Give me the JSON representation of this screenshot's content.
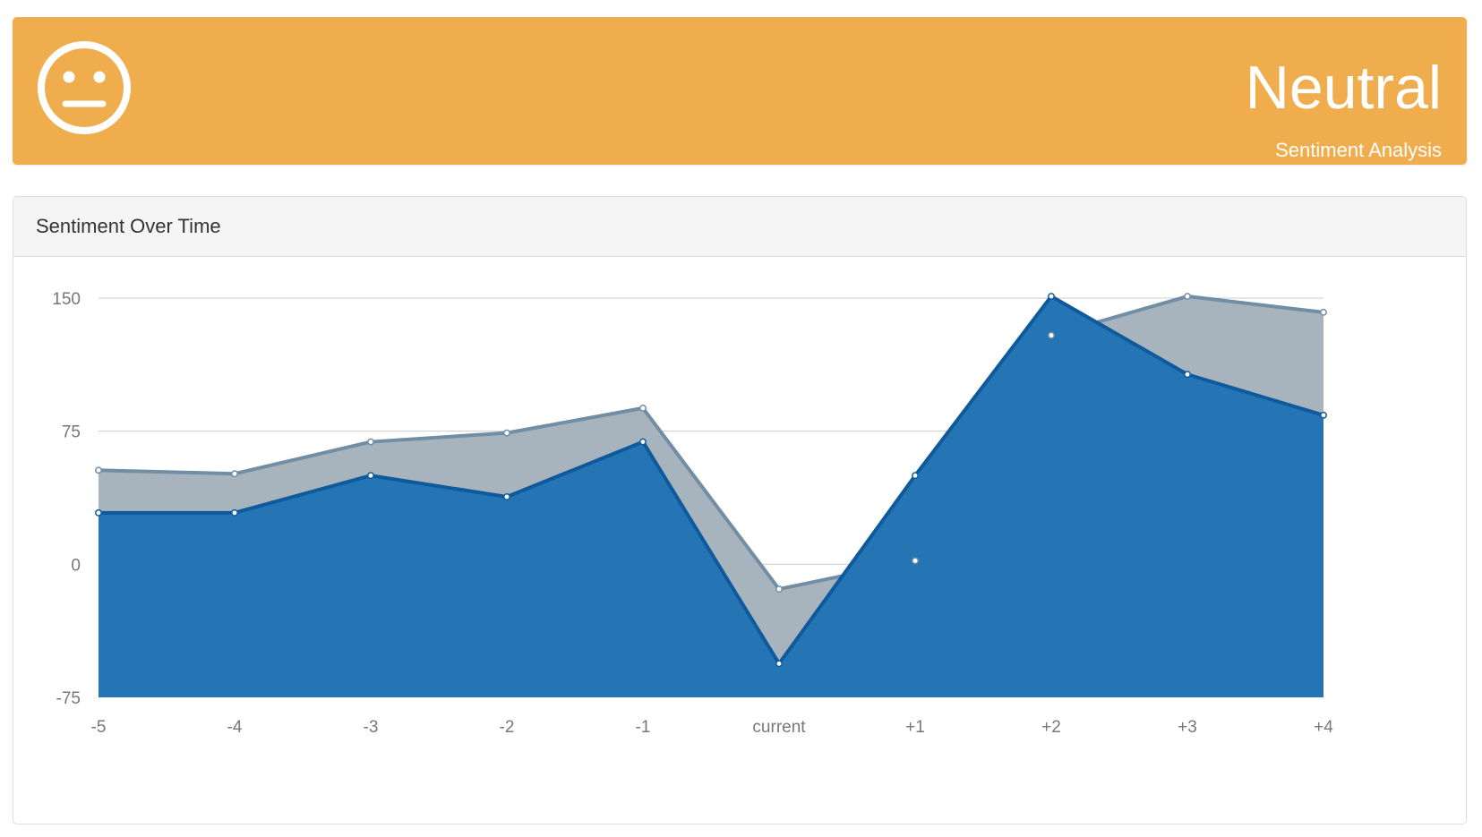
{
  "header": {
    "face_icon": "neutral-face-icon",
    "headline": "Neutral",
    "subtitle": "Sentiment Analysis",
    "background_color": "#f0ad4e"
  },
  "panel": {
    "title": "Sentiment Over Time"
  },
  "chart_data": {
    "type": "area",
    "categories": [
      "-5",
      "-4",
      "-3",
      "-2",
      "-1",
      "current",
      "+1",
      "+2",
      "+3",
      "+4"
    ],
    "series": [
      {
        "color": "#a7b3bd",
        "line_color": "#718ea5",
        "values": [
          53,
          51,
          69,
          74,
          88,
          -14,
          2,
          129,
          151,
          142
        ]
      },
      {
        "color": "#2575b4",
        "line_color": "#0e5a9d",
        "values": [
          29,
          29,
          50,
          38,
          69,
          -56,
          50,
          151,
          107,
          84
        ]
      }
    ],
    "y_ticks": [
      "150",
      "75",
      "0",
      "-75"
    ],
    "ylim": [
      -75,
      150
    ],
    "grid": true
  }
}
